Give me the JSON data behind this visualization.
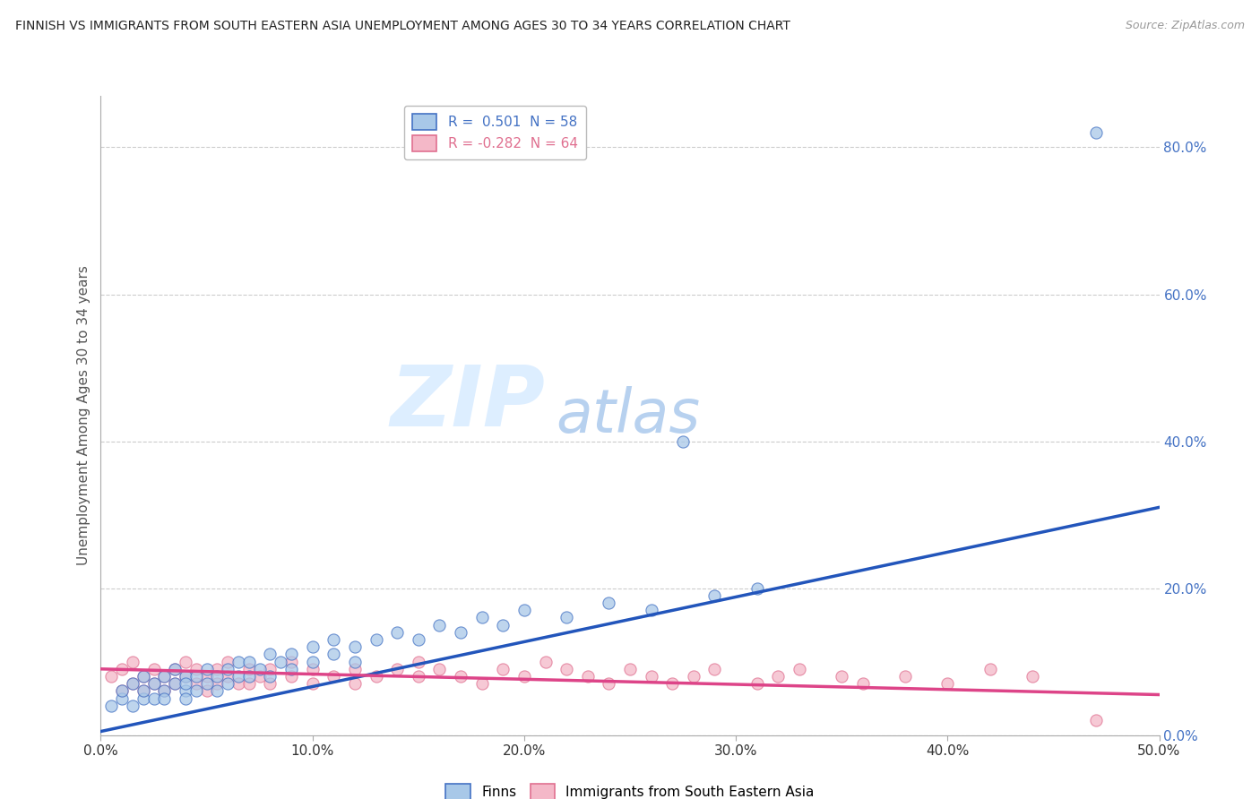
{
  "title": "FINNISH VS IMMIGRANTS FROM SOUTH EASTERN ASIA UNEMPLOYMENT AMONG AGES 30 TO 34 YEARS CORRELATION CHART",
  "source_text": "Source: ZipAtlas.com",
  "ylabel": "Unemployment Among Ages 30 to 34 years",
  "xlabel_ticks": [
    "0.0%",
    "10.0%",
    "20.0%",
    "30.0%",
    "40.0%",
    "50.0%"
  ],
  "xlabel_vals": [
    0.0,
    0.1,
    0.2,
    0.3,
    0.4,
    0.5
  ],
  "ylabel_ticks": [
    "0.0%",
    "20.0%",
    "40.0%",
    "60.0%",
    "80.0%"
  ],
  "ylabel_vals": [
    0.0,
    0.2,
    0.4,
    0.6,
    0.8
  ],
  "xlim": [
    0.0,
    0.5
  ],
  "ylim": [
    0.0,
    0.87
  ],
  "finns_color": "#a8c8e8",
  "immigrants_color": "#f4b8c8",
  "finns_edge_color": "#4472c4",
  "immigrants_edge_color": "#e07090",
  "finns_line_color": "#2255bb",
  "immigrants_line_color": "#dd4488",
  "watermark_color": "#ddeeff",
  "background_color": "#ffffff",
  "grid_color": "#cccccc",
  "finns_x": [
    0.005,
    0.01,
    0.01,
    0.015,
    0.015,
    0.02,
    0.02,
    0.02,
    0.025,
    0.025,
    0.03,
    0.03,
    0.03,
    0.035,
    0.035,
    0.04,
    0.04,
    0.04,
    0.04,
    0.045,
    0.045,
    0.05,
    0.05,
    0.055,
    0.055,
    0.06,
    0.06,
    0.065,
    0.065,
    0.07,
    0.07,
    0.075,
    0.08,
    0.08,
    0.085,
    0.09,
    0.09,
    0.1,
    0.1,
    0.11,
    0.11,
    0.12,
    0.12,
    0.13,
    0.14,
    0.15,
    0.16,
    0.17,
    0.18,
    0.19,
    0.2,
    0.22,
    0.24,
    0.26,
    0.29,
    0.31,
    0.275,
    0.47
  ],
  "finns_y": [
    0.04,
    0.05,
    0.06,
    0.04,
    0.07,
    0.05,
    0.06,
    0.08,
    0.05,
    0.07,
    0.06,
    0.08,
    0.05,
    0.07,
    0.09,
    0.06,
    0.08,
    0.05,
    0.07,
    0.06,
    0.08,
    0.07,
    0.09,
    0.06,
    0.08,
    0.07,
    0.09,
    0.08,
    0.1,
    0.08,
    0.1,
    0.09,
    0.11,
    0.08,
    0.1,
    0.09,
    0.11,
    0.1,
    0.12,
    0.11,
    0.13,
    0.1,
    0.12,
    0.13,
    0.14,
    0.13,
    0.15,
    0.14,
    0.16,
    0.15,
    0.17,
    0.16,
    0.18,
    0.17,
    0.19,
    0.2,
    0.4,
    0.82
  ],
  "immig_x": [
    0.005,
    0.01,
    0.01,
    0.015,
    0.015,
    0.02,
    0.02,
    0.025,
    0.025,
    0.03,
    0.03,
    0.035,
    0.035,
    0.04,
    0.04,
    0.045,
    0.045,
    0.05,
    0.05,
    0.055,
    0.055,
    0.06,
    0.06,
    0.065,
    0.07,
    0.07,
    0.075,
    0.08,
    0.08,
    0.09,
    0.09,
    0.1,
    0.1,
    0.11,
    0.12,
    0.12,
    0.13,
    0.14,
    0.15,
    0.15,
    0.16,
    0.17,
    0.18,
    0.19,
    0.2,
    0.21,
    0.22,
    0.23,
    0.24,
    0.25,
    0.26,
    0.27,
    0.28,
    0.29,
    0.31,
    0.32,
    0.33,
    0.35,
    0.36,
    0.38,
    0.4,
    0.42,
    0.44,
    0.47
  ],
  "immig_y": [
    0.08,
    0.06,
    0.09,
    0.07,
    0.1,
    0.08,
    0.06,
    0.09,
    0.07,
    0.08,
    0.06,
    0.09,
    0.07,
    0.08,
    0.1,
    0.07,
    0.09,
    0.08,
    0.06,
    0.09,
    0.07,
    0.08,
    0.1,
    0.07,
    0.09,
    0.07,
    0.08,
    0.09,
    0.07,
    0.08,
    0.1,
    0.09,
    0.07,
    0.08,
    0.09,
    0.07,
    0.08,
    0.09,
    0.08,
    0.1,
    0.09,
    0.08,
    0.07,
    0.09,
    0.08,
    0.1,
    0.09,
    0.08,
    0.07,
    0.09,
    0.08,
    0.07,
    0.08,
    0.09,
    0.07,
    0.08,
    0.09,
    0.08,
    0.07,
    0.08,
    0.07,
    0.09,
    0.08,
    0.02
  ],
  "finns_trend_x": [
    0.0,
    0.5
  ],
  "finns_trend_y": [
    0.005,
    0.31
  ],
  "immig_trend_x": [
    0.0,
    0.5
  ],
  "immig_trend_y": [
    0.09,
    0.055
  ]
}
